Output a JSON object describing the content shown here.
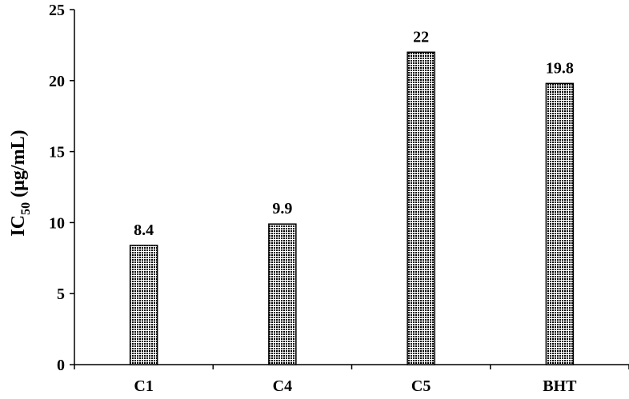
{
  "chart_data": {
    "type": "bar",
    "title": "",
    "xlabel": "",
    "ylabel": {
      "prefix": "IC",
      "subscript": "50",
      "suffix": " (µg/mL)"
    },
    "categories": [
      "C1",
      "C4",
      "C5",
      "BHT"
    ],
    "values": [
      8.4,
      9.9,
      22,
      19.8
    ],
    "data_labels": [
      "8.4",
      "9.9",
      "22",
      "19.8"
    ],
    "y_ticks": [
      0,
      5,
      10,
      15,
      20,
      25
    ],
    "ylim": [
      0,
      25
    ],
    "grid": false,
    "legend": "none",
    "bar_fill": "dotted black pattern",
    "colors": {
      "bar_dots": "#000000",
      "bar_bg": "#ffffff",
      "axis": "#000000"
    }
  }
}
